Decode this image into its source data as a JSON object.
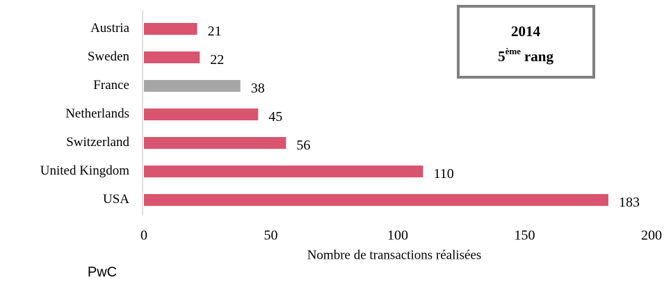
{
  "chart_data": {
    "type": "barh",
    "categories": [
      "Austria",
      "Sweden",
      "France",
      "Netherlands",
      "Switzerland",
      "United Kingdom",
      "USA"
    ],
    "values": [
      21,
      22,
      38,
      45,
      56,
      110,
      183
    ],
    "colors": [
      "#d9546e",
      "#d9546e",
      "#a6a6a6",
      "#d9546e",
      "#d9546e",
      "#d9546e",
      "#d9546e"
    ],
    "xlim": [
      0,
      200
    ],
    "xticks": [
      0,
      50,
      100,
      150,
      200
    ],
    "xlabel": "Nombre  de transactions réalisées",
    "annotation": {
      "year": "2014",
      "rank_number": "5",
      "rank_suffix": "ème",
      "rank_word": "rang"
    },
    "source": "PwC"
  }
}
